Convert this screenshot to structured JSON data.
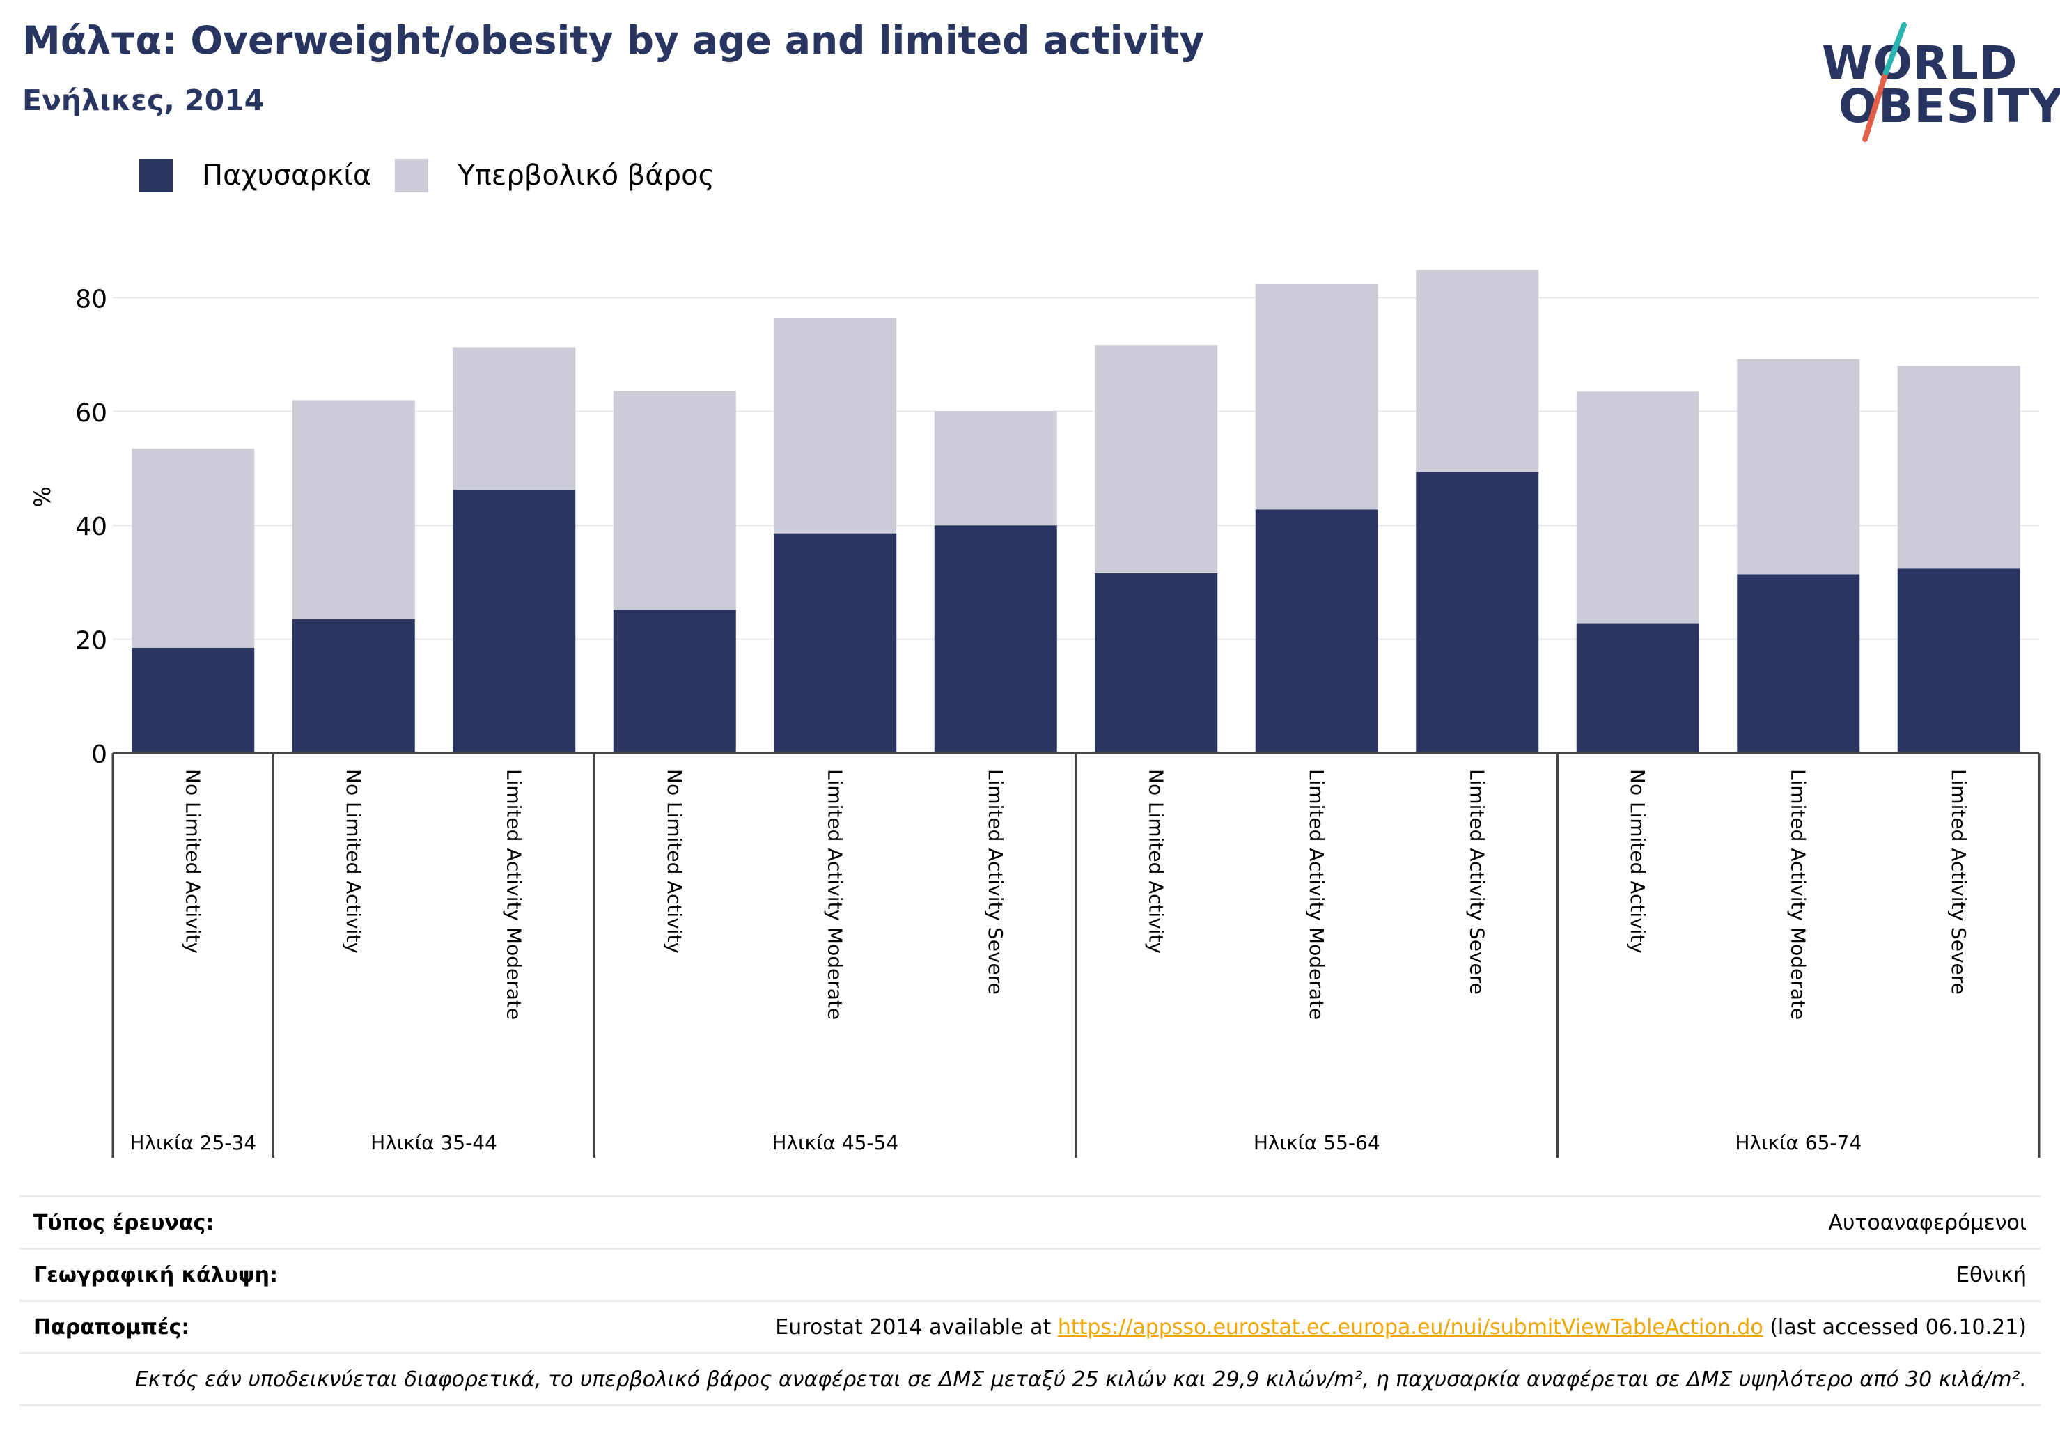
{
  "header": {
    "title": "Μάλτα: Overweight/obesity by age and limited activity",
    "subtitle": "Ενήλικες, 2014"
  },
  "logo": {
    "line1": "WORLD",
    "line2": "OBESITY",
    "colors": {
      "navy": "#283561",
      "teal": "#2bb3b1",
      "coral": "#e2604a"
    }
  },
  "legend": [
    {
      "label": "Παχυσαρκία",
      "color": "#2a3561"
    },
    {
      "label": "Υπερβολικό βάρος",
      "color": "#cbccd8"
    }
  ],
  "chart_data": {
    "type": "bar",
    "stacked": true,
    "ylabel": "%",
    "ylim": [
      0,
      90
    ],
    "yticks": [
      0,
      20,
      40,
      60,
      80
    ],
    "grid": true,
    "legend_position": "top-left",
    "categories": [
      "No Limited Activity",
      "No Limited Activity",
      "Limited Activity Moderate",
      "No Limited Activity",
      "Limited Activity Moderate",
      "Limited Activity Severe",
      "No Limited Activity",
      "Limited Activity Moderate",
      "Limited Activity Severe",
      "No Limited Activity",
      "Limited Activity Moderate",
      "Limited Activity Severe"
    ],
    "groups": [
      {
        "label": "Ηλικία 25-34",
        "start": 0,
        "count": 1
      },
      {
        "label": "Ηλικία 35-44",
        "start": 1,
        "count": 2
      },
      {
        "label": "Ηλικία 45-54",
        "start": 3,
        "count": 3
      },
      {
        "label": "Ηλικία 55-64",
        "start": 6,
        "count": 3
      },
      {
        "label": "Ηλικία 65-74",
        "start": 9,
        "count": 3
      }
    ],
    "series": [
      {
        "name": "Παχυσαρκία",
        "color": "#2a3561",
        "values": [
          18.5,
          23.5,
          46.2,
          25.2,
          38.6,
          40.0,
          31.6,
          42.8,
          49.4,
          22.7,
          31.4,
          32.4
        ]
      },
      {
        "name": "Υπερβολικό βάρος",
        "color": "#cbccd8",
        "values": [
          35.0,
          38.5,
          25.1,
          38.4,
          37.9,
          20.1,
          40.1,
          39.6,
          35.5,
          40.8,
          37.8,
          35.6
        ]
      }
    ]
  },
  "footer": {
    "survey_type_label": "Τύπος έρευνας:",
    "survey_type_value": "Αυτοαναφερόμενοι",
    "coverage_label": "Γεωγραφική κάλυψη:",
    "coverage_value": "Εθνική",
    "references_label": "Παραπομπές:",
    "references_prefix": "Eurostat 2014 available at ",
    "references_link": "https://appsso.eurostat.ec.europa.eu/nui/submitViewTableAction.do",
    "references_suffix": " (last accessed 06.10.21)",
    "note": "Εκτός εάν υποδεικνύεται διαφορετικά, το υπερβολικό βάρος αναφέρεται σε ΔΜΣ μεταξύ 25 κιλών και 29,9 κιλών/m², η παχυσαρκία αναφέρεται σε ΔΜΣ υψηλότερο από 30 κιλά/m²."
  }
}
